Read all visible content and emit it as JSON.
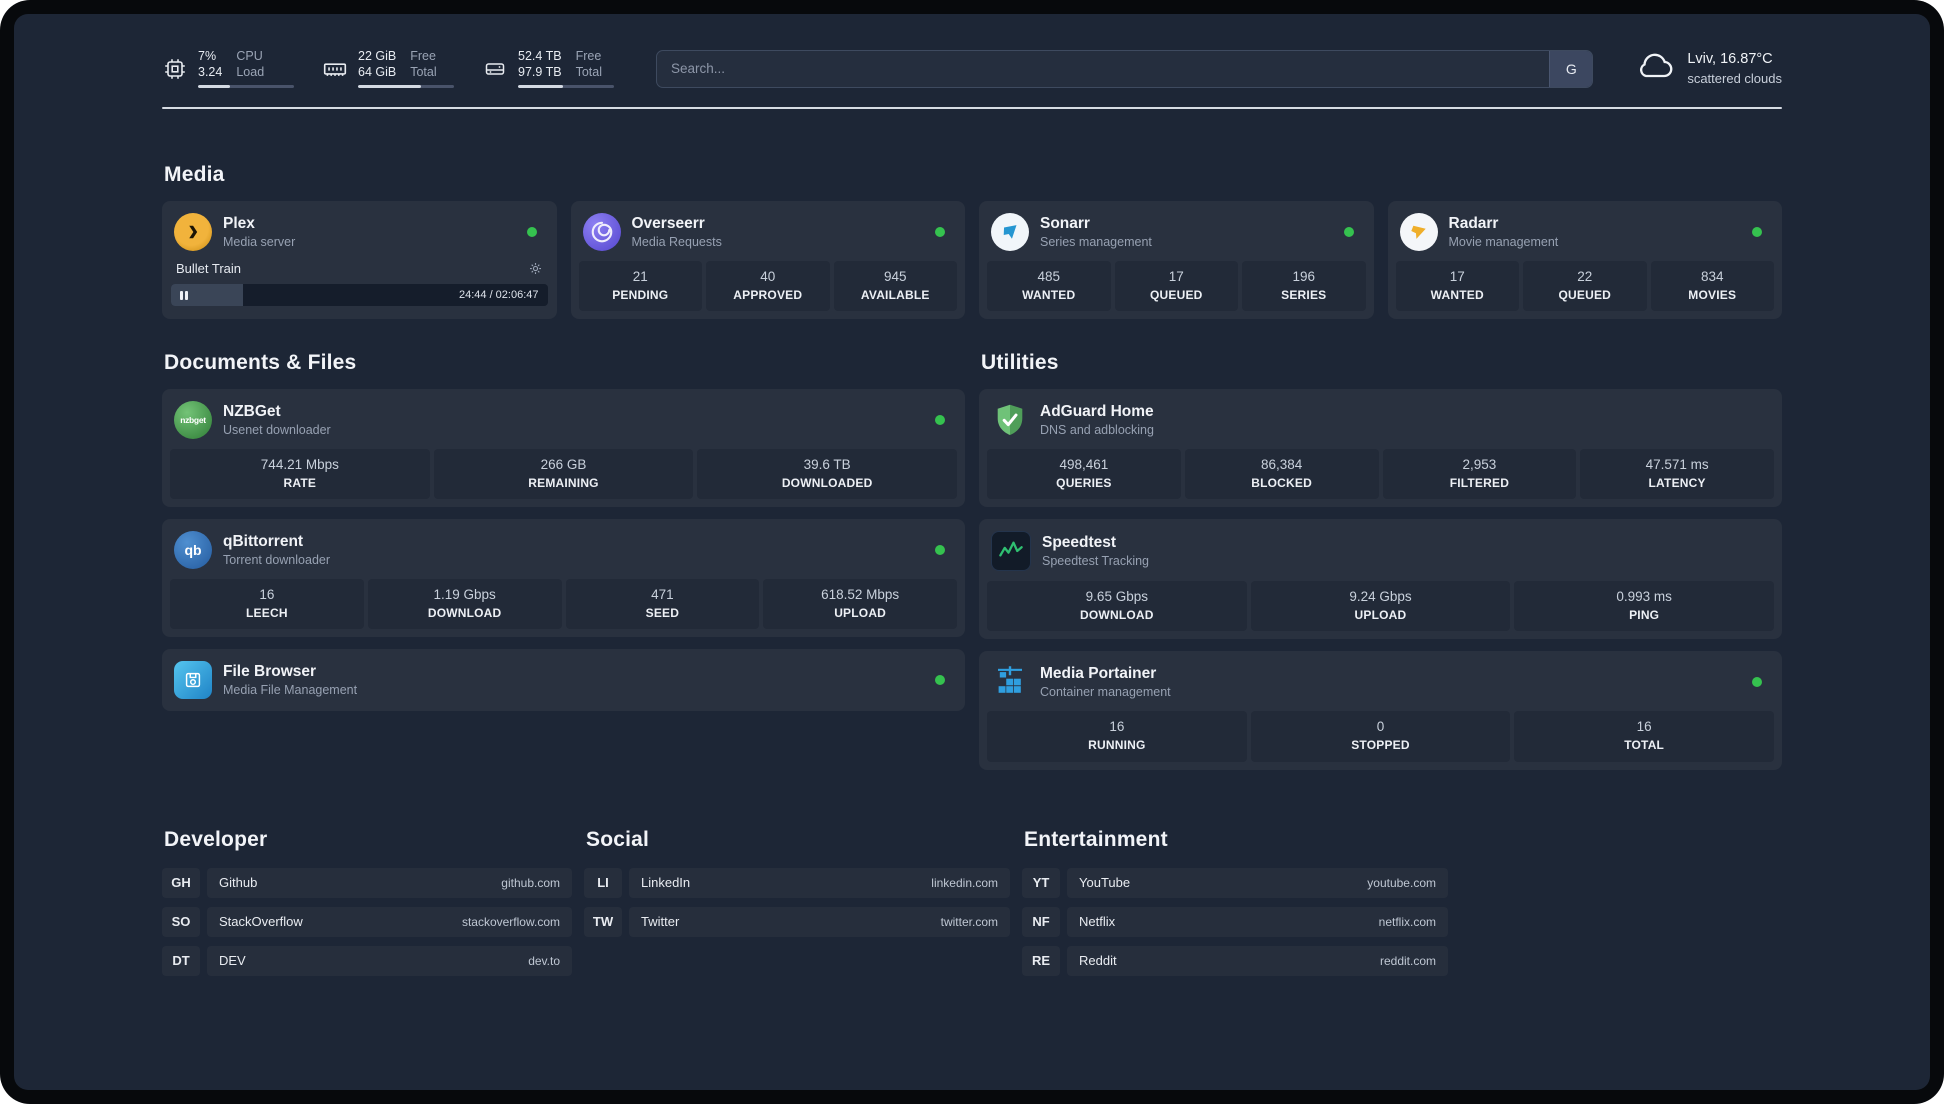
{
  "header": {
    "metrics": [
      {
        "value_top": "7%",
        "value_bottom": "3.24",
        "label_top": "CPU",
        "label_bottom": "Load",
        "progress_pct": 33
      },
      {
        "value_top": "22 GiB",
        "value_bottom": "64 GiB",
        "label_top": "Free",
        "label_bottom": "Total",
        "progress_pct": 66
      },
      {
        "value_top": "52.4 TB",
        "value_bottom": "97.9 TB",
        "label_top": "Free",
        "label_bottom": "Total",
        "progress_pct": 47
      }
    ],
    "search": {
      "placeholder": "Search...",
      "engine_button": "G"
    },
    "weather": {
      "location": "Lviv, 16.87°C",
      "condition": "scattered clouds"
    }
  },
  "media": {
    "title": "Media",
    "plex": {
      "name": "Plex",
      "desc": "Media server",
      "now_playing": "Bullet Train",
      "time": "24:44 / 02:06:47",
      "progress_pct": 19
    },
    "overseerr": {
      "name": "Overseerr",
      "desc": "Media Requests",
      "stats": [
        {
          "value": "21",
          "label": "PENDING"
        },
        {
          "value": "40",
          "label": "APPROVED"
        },
        {
          "value": "945",
          "label": "AVAILABLE"
        }
      ]
    },
    "sonarr": {
      "name": "Sonarr",
      "desc": "Series management",
      "stats": [
        {
          "value": "485",
          "label": "WANTED"
        },
        {
          "value": "17",
          "label": "QUEUED"
        },
        {
          "value": "196",
          "label": "SERIES"
        }
      ]
    },
    "radarr": {
      "name": "Radarr",
      "desc": "Movie management",
      "stats": [
        {
          "value": "17",
          "label": "WANTED"
        },
        {
          "value": "22",
          "label": "QUEUED"
        },
        {
          "value": "834",
          "label": "MOVIES"
        }
      ]
    }
  },
  "files": {
    "title": "Documents & Files",
    "nzbget": {
      "name": "NZBGet",
      "desc": "Usenet downloader",
      "icon_text": "nzbget",
      "stats": [
        {
          "value": "744.21 Mbps",
          "label": "RATE"
        },
        {
          "value": "266 GB",
          "label": "REMAINING"
        },
        {
          "value": "39.6 TB",
          "label": "DOWNLOADED"
        }
      ]
    },
    "qbittorrent": {
      "name": "qBittorrent",
      "desc": "Torrent downloader",
      "icon_text": "qb",
      "stats": [
        {
          "value": "16",
          "label": "LEECH"
        },
        {
          "value": "1.19 Gbps",
          "label": "DOWNLOAD"
        },
        {
          "value": "471",
          "label": "SEED"
        },
        {
          "value": "618.52 Mbps",
          "label": "UPLOAD"
        }
      ]
    },
    "filebrowser": {
      "name": "File Browser",
      "desc": "Media File Management"
    }
  },
  "utilities": {
    "title": "Utilities",
    "adguard": {
      "name": "AdGuard Home",
      "desc": "DNS and adblocking",
      "stats": [
        {
          "value": "498,461",
          "label": "QUERIES"
        },
        {
          "value": "86,384",
          "label": "BLOCKED"
        },
        {
          "value": "2,953",
          "label": "FILTERED"
        },
        {
          "value": "47.571 ms",
          "label": "LATENCY"
        }
      ]
    },
    "speedtest": {
      "name": "Speedtest",
      "desc": "Speedtest Tracking",
      "stats": [
        {
          "value": "9.65 Gbps",
          "label": "DOWNLOAD"
        },
        {
          "value": "9.24 Gbps",
          "label": "UPLOAD"
        },
        {
          "value": "0.993 ms",
          "label": "PING"
        }
      ]
    },
    "portainer": {
      "name": "Media Portainer",
      "desc": "Container management",
      "stats": [
        {
          "value": "16",
          "label": "RUNNING"
        },
        {
          "value": "0",
          "label": "STOPPED"
        },
        {
          "value": "16",
          "label": "TOTAL"
        }
      ]
    }
  },
  "links": {
    "developer": {
      "title": "Developer",
      "items": [
        {
          "abbr": "GH",
          "name": "Github",
          "url": "github.com"
        },
        {
          "abbr": "SO",
          "name": "StackOverflow",
          "url": "stackoverflow.com"
        },
        {
          "abbr": "DT",
          "name": "DEV",
          "url": "dev.to"
        }
      ]
    },
    "social": {
      "title": "Social",
      "items": [
        {
          "abbr": "LI",
          "name": "LinkedIn",
          "url": "linkedin.com"
        },
        {
          "abbr": "TW",
          "name": "Twitter",
          "url": "twitter.com"
        }
      ]
    },
    "entertainment": {
      "title": "Entertainment",
      "items": [
        {
          "abbr": "YT",
          "name": "YouTube",
          "url": "youtube.com"
        },
        {
          "abbr": "NF",
          "name": "Netflix",
          "url": "netflix.com"
        },
        {
          "abbr": "RE",
          "name": "Reddit",
          "url": "reddit.com"
        }
      ]
    }
  },
  "colors": {
    "online_dot": "#35c24f",
    "accent": "#e5a00d",
    "background": "#1d2636"
  }
}
